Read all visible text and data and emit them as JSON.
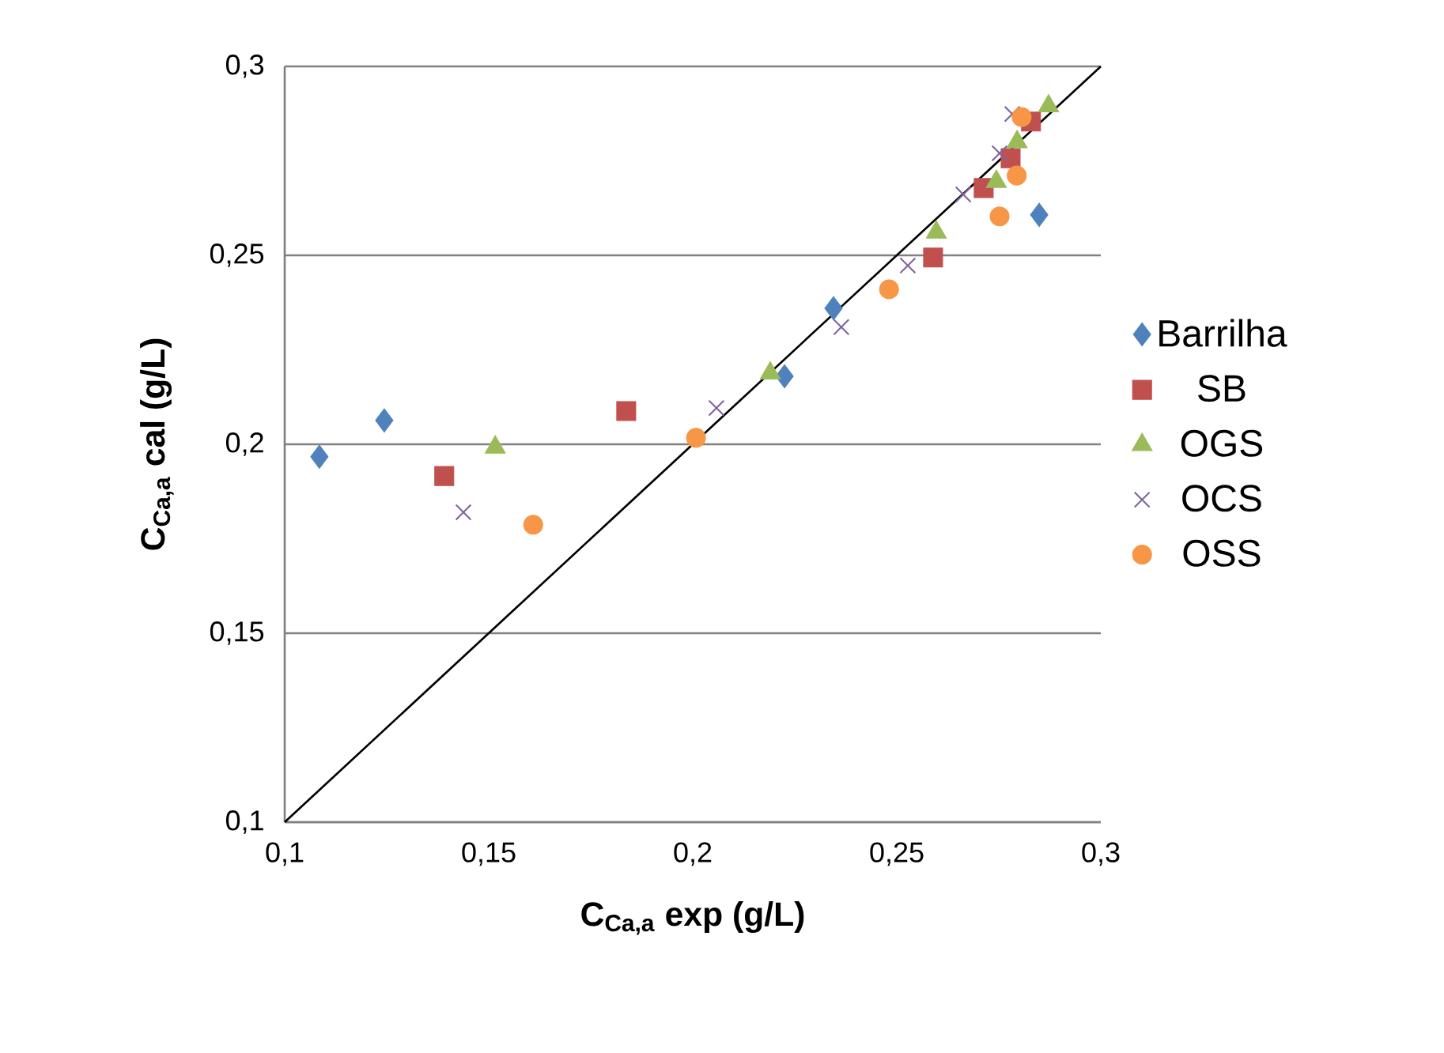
{
  "chart_data": {
    "type": "scatter",
    "xlabel": "**C$_{Ca,a}$ exp (g/L)**",
    "ylabel": "**C$_{Ca,a}$ cal (g/L)**",
    "xlim": [
      0.1,
      0.3
    ],
    "ylim": [
      0.1,
      0.3
    ],
    "xticks": [
      {
        "value": 0.1,
        "label": "0,1"
      },
      {
        "value": 0.15,
        "label": "0,15"
      },
      {
        "value": 0.2,
        "label": "0,2"
      },
      {
        "value": 0.25,
        "label": "0,25"
      },
      {
        "value": 0.3,
        "label": "0,3"
      }
    ],
    "yticks": [
      {
        "value": 0.1,
        "label": "0,1"
      },
      {
        "value": 0.15,
        "label": "0,15"
      },
      {
        "value": 0.2,
        "label": "0,2"
      },
      {
        "value": 0.25,
        "label": "0,25"
      },
      {
        "value": 0.3,
        "label": "0,3"
      }
    ],
    "grid": "y",
    "legend": "right",
    "series": [
      {
        "name": "Barrilha",
        "color": "#4f81bd",
        "marker": "diamond",
        "x": [
          0.1085,
          0.1244,
          0.2225,
          0.2345,
          0.2849
        ],
        "values": [
          0.1967,
          0.2063,
          0.218,
          0.236,
          0.2607
        ]
      },
      {
        "name": "SB",
        "color": "#c0504d",
        "marker": "square",
        "x": [
          0.1391,
          0.1837,
          0.2589,
          0.2713,
          0.2779,
          0.2829
        ],
        "values": [
          0.1916,
          0.2088,
          0.2494,
          0.2678,
          0.2757,
          0.2854
        ]
      },
      {
        "name": "OGS",
        "color": "#9bbb59",
        "marker": "triangle",
        "x": [
          0.1516,
          0.219,
          0.2597,
          0.2744,
          0.2795,
          0.2872
        ],
        "values": [
          0.1992,
          0.2188,
          0.2561,
          0.2695,
          0.28,
          0.2895
        ]
      },
      {
        "name": "OCS",
        "color": "#8064a2",
        "marker": "cross",
        "x": [
          0.1438,
          0.2058,
          0.2364,
          0.2527,
          0.2663,
          0.2752,
          0.2783
        ],
        "values": [
          0.182,
          0.2096,
          0.231,
          0.2473,
          0.2661,
          0.277,
          0.2874
        ]
      },
      {
        "name": "OSS",
        "color": "#f79646",
        "marker": "circle",
        "x": [
          0.1609,
          0.2008,
          0.2481,
          0.2752,
          0.2794,
          0.2806
        ],
        "values": [
          0.1787,
          0.2017,
          0.241,
          0.2603,
          0.2711,
          0.2866
        ]
      },
      {
        "type": "line",
        "color": "#000000",
        "marker": "none",
        "x": [
          0.1,
          0.3
        ],
        "values": [
          0.1,
          0.3
        ]
      }
    ]
  }
}
